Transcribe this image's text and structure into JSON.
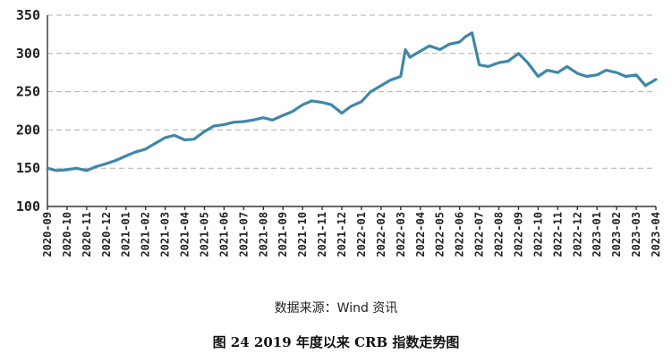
{
  "source_note": "数据来源：Wind 资讯",
  "figure_caption": "图 24   2019 年度以来 CRB 指数走势图",
  "colors": {
    "line": "#3f87a8",
    "grid": "#b0b0b0",
    "axis": "#333333"
  },
  "chart_data": {
    "type": "line",
    "title": "",
    "xlabel": "",
    "ylabel": "",
    "ylim": [
      100,
      350
    ],
    "yticks": [
      100,
      150,
      200,
      250,
      300,
      350
    ],
    "xticks": [
      "2020-09",
      "2020-10",
      "2020-11",
      "2020-12",
      "2021-01",
      "2021-02",
      "2021-03",
      "2021-04",
      "2021-05",
      "2021-06",
      "2021-07",
      "2021-08",
      "2021-09",
      "2021-10",
      "2021-11",
      "2021-12",
      "2022-01",
      "2022-02",
      "2022-03",
      "2022-04",
      "2022-05",
      "2022-06",
      "2022-07",
      "2022-08",
      "2022-09",
      "2022-10",
      "2022-11",
      "2022-12",
      "2023-01",
      "2023-02",
      "2023-03",
      "2023-04"
    ],
    "grid": "horizontal-dashed",
    "legend": "none",
    "series": [
      {
        "x": [
          "2020-09",
          "2020-09-15",
          "2020-10",
          "2020-10-15",
          "2020-11",
          "2020-11-15",
          "2020-12",
          "2020-12-15",
          "2021-01",
          "2021-01-15",
          "2021-02",
          "2021-02-15",
          "2021-03",
          "2021-03-15",
          "2021-04",
          "2021-04-15",
          "2021-05",
          "2021-05-15",
          "2021-06",
          "2021-06-15",
          "2021-07",
          "2021-07-15",
          "2021-08",
          "2021-08-15",
          "2021-09",
          "2021-09-15",
          "2021-10",
          "2021-10-15",
          "2021-11",
          "2021-11-15",
          "2021-12",
          "2021-12-15",
          "2022-01",
          "2022-01-15",
          "2022-02",
          "2022-02-15",
          "2022-03",
          "2022-03-08",
          "2022-03-15",
          "2022-03-25",
          "2022-04",
          "2022-04-15",
          "2022-05",
          "2022-05-15",
          "2022-06",
          "2022-06-10",
          "2022-06-20",
          "2022-07",
          "2022-07-15",
          "2022-08",
          "2022-08-15",
          "2022-09",
          "2022-09-15",
          "2022-10",
          "2022-10-15",
          "2022-11",
          "2022-11-15",
          "2022-12",
          "2022-12-15",
          "2023-01",
          "2023-01-15",
          "2023-02",
          "2023-02-15",
          "2023-03",
          "2023-03-15",
          "2023-04"
        ],
        "values": [
          150,
          147,
          148,
          150,
          147,
          152,
          156,
          160,
          166,
          171,
          175,
          182,
          190,
          193,
          187,
          188,
          198,
          205,
          207,
          210,
          211,
          213,
          216,
          213,
          219,
          224,
          233,
          238,
          236,
          233,
          222,
          231,
          237,
          250,
          258,
          265,
          270,
          305,
          295,
          300,
          303,
          310,
          305,
          312,
          315,
          322,
          327,
          285,
          283,
          288,
          290,
          300,
          288,
          270,
          278,
          275,
          283,
          274,
          270,
          272,
          278,
          275,
          270,
          272,
          258,
          266
        ]
      }
    ]
  }
}
